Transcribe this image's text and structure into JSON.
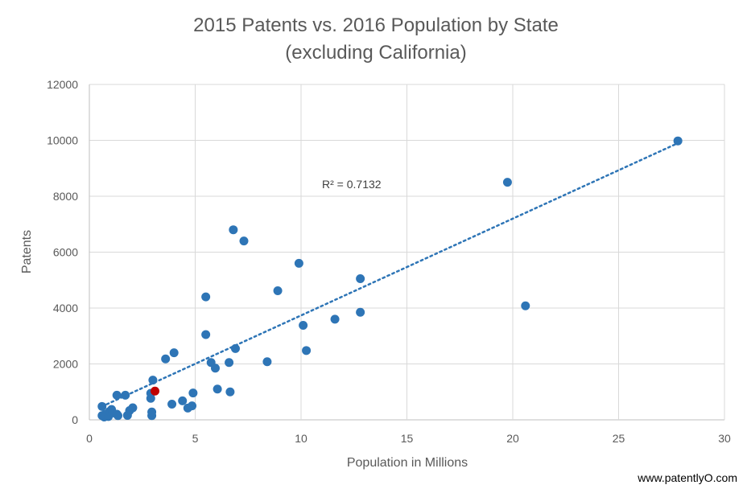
{
  "chart_data": {
    "type": "scatter",
    "title": "2015 Patents vs. 2016 Population by State",
    "subtitle": "(excluding California)",
    "xlabel": "Population in Millions",
    "ylabel": "Patents",
    "xlim": [
      0,
      30
    ],
    "ylim": [
      0,
      12000
    ],
    "xticks": [
      0,
      5,
      10,
      15,
      20,
      25,
      30
    ],
    "yticks": [
      0,
      2000,
      4000,
      6000,
      8000,
      10000,
      12000
    ],
    "grid": true,
    "point_color": "#2E75B6",
    "highlight_color": "#C00000",
    "trendline": {
      "type": "linear",
      "style": "dotted",
      "color": "#2E75B6",
      "x_range": [
        0.6,
        27.8
      ],
      "y_at_start": 480,
      "y_at_end": 9900,
      "r_squared_label": "R² = 0.7132"
    },
    "points": [
      {
        "x": 0.6,
        "y": 150
      },
      {
        "x": 0.7,
        "y": 100
      },
      {
        "x": 0.6,
        "y": 480
      },
      {
        "x": 0.75,
        "y": 200
      },
      {
        "x": 0.9,
        "y": 120
      },
      {
        "x": 0.95,
        "y": 300
      },
      {
        "x": 1.05,
        "y": 370
      },
      {
        "x": 1.1,
        "y": 250
      },
      {
        "x": 1.3,
        "y": 200
      },
      {
        "x": 1.35,
        "y": 150
      },
      {
        "x": 1.3,
        "y": 880
      },
      {
        "x": 1.7,
        "y": 880
      },
      {
        "x": 1.8,
        "y": 160
      },
      {
        "x": 1.9,
        "y": 330
      },
      {
        "x": 2.05,
        "y": 430
      },
      {
        "x": 2.95,
        "y": 150
      },
      {
        "x": 2.95,
        "y": 280
      },
      {
        "x": 2.9,
        "y": 770
      },
      {
        "x": 2.9,
        "y": 950
      },
      {
        "x": 3.0,
        "y": 1420
      },
      {
        "x": 3.9,
        "y": 560
      },
      {
        "x": 4.4,
        "y": 680
      },
      {
        "x": 4.65,
        "y": 420
      },
      {
        "x": 4.85,
        "y": 500
      },
      {
        "x": 4.9,
        "y": 960
      },
      {
        "x": 3.6,
        "y": 2180
      },
      {
        "x": 4.0,
        "y": 2400
      },
      {
        "x": 5.5,
        "y": 4400
      },
      {
        "x": 5.5,
        "y": 3050
      },
      {
        "x": 5.75,
        "y": 2050
      },
      {
        "x": 5.95,
        "y": 1850
      },
      {
        "x": 6.05,
        "y": 1100
      },
      {
        "x": 6.6,
        "y": 2050
      },
      {
        "x": 6.65,
        "y": 1000
      },
      {
        "x": 6.9,
        "y": 2550
      },
      {
        "x": 6.8,
        "y": 6800
      },
      {
        "x": 7.3,
        "y": 6400
      },
      {
        "x": 8.4,
        "y": 2080
      },
      {
        "x": 8.9,
        "y": 4620
      },
      {
        "x": 9.9,
        "y": 5600
      },
      {
        "x": 10.1,
        "y": 3380
      },
      {
        "x": 10.25,
        "y": 2480
      },
      {
        "x": 11.6,
        "y": 3600
      },
      {
        "x": 12.8,
        "y": 5050
      },
      {
        "x": 12.8,
        "y": 3850
      },
      {
        "x": 19.75,
        "y": 8500
      },
      {
        "x": 20.6,
        "y": 4080
      },
      {
        "x": 27.8,
        "y": 9980
      }
    ],
    "highlight_points": [
      {
        "x": 3.1,
        "y": 1030
      }
    ]
  },
  "footer": {
    "source": "www.patentlyO.com"
  }
}
